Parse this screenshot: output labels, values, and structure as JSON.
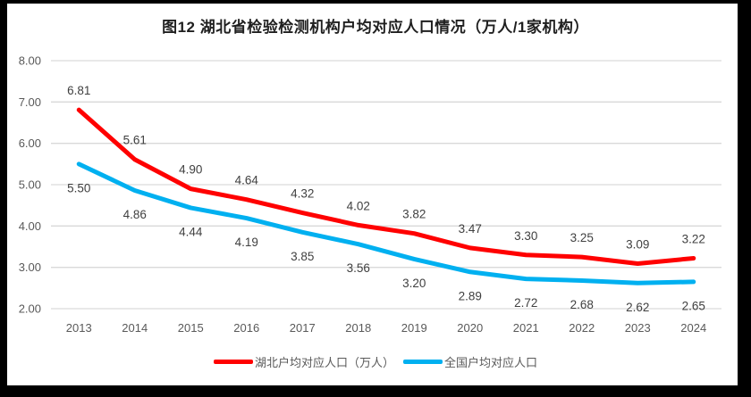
{
  "title": "图12 湖北省检验检测机构户均对应人口情况（万人/1家机构）",
  "chart_data": {
    "type": "line",
    "categories": [
      "2013",
      "2014",
      "2015",
      "2016",
      "2017",
      "2018",
      "2019",
      "2020",
      "2021",
      "2022",
      "2023",
      "2024"
    ],
    "series": [
      {
        "name": "湖北户均对应人口（万人）",
        "color": "#FF0000",
        "values": [
          6.81,
          5.61,
          4.9,
          4.64,
          4.32,
          4.02,
          3.82,
          3.47,
          3.3,
          3.25,
          3.09,
          3.22
        ],
        "labels": [
          "6.81",
          "5.61",
          "4.90",
          "4.64",
          "4.32",
          "4.02",
          "3.82",
          "3.47",
          "3.30",
          "3.25",
          "3.09",
          "3.22"
        ],
        "label_position": "above"
      },
      {
        "name": "全国户均对应人口",
        "color": "#00B0F0",
        "values": [
          5.5,
          4.86,
          4.44,
          4.19,
          3.85,
          3.56,
          3.2,
          2.89,
          2.72,
          2.68,
          2.62,
          2.65
        ],
        "labels": [
          "5.50",
          "4.86",
          "4.44",
          "4.19",
          "3.85",
          "3.56",
          "3.20",
          "2.89",
          "2.72",
          "2.68",
          "2.62",
          "2.65"
        ],
        "label_position": "below"
      }
    ],
    "xlabel": "",
    "ylabel": "",
    "ylim": [
      2.0,
      8.0
    ],
    "ytick_labels": [
      "8.00",
      "7.00",
      "6.00",
      "5.00",
      "4.00",
      "3.00",
      "2.00"
    ],
    "grid": true,
    "legend_position": "bottom"
  },
  "colors": {
    "frame": "#000000",
    "background": "#FFFFFF",
    "grid": "#D9D9D9",
    "axis_text": "#595959",
    "value_label": "#404040",
    "legend_text": "#595959",
    "title_text": "#1F1F1F"
  }
}
